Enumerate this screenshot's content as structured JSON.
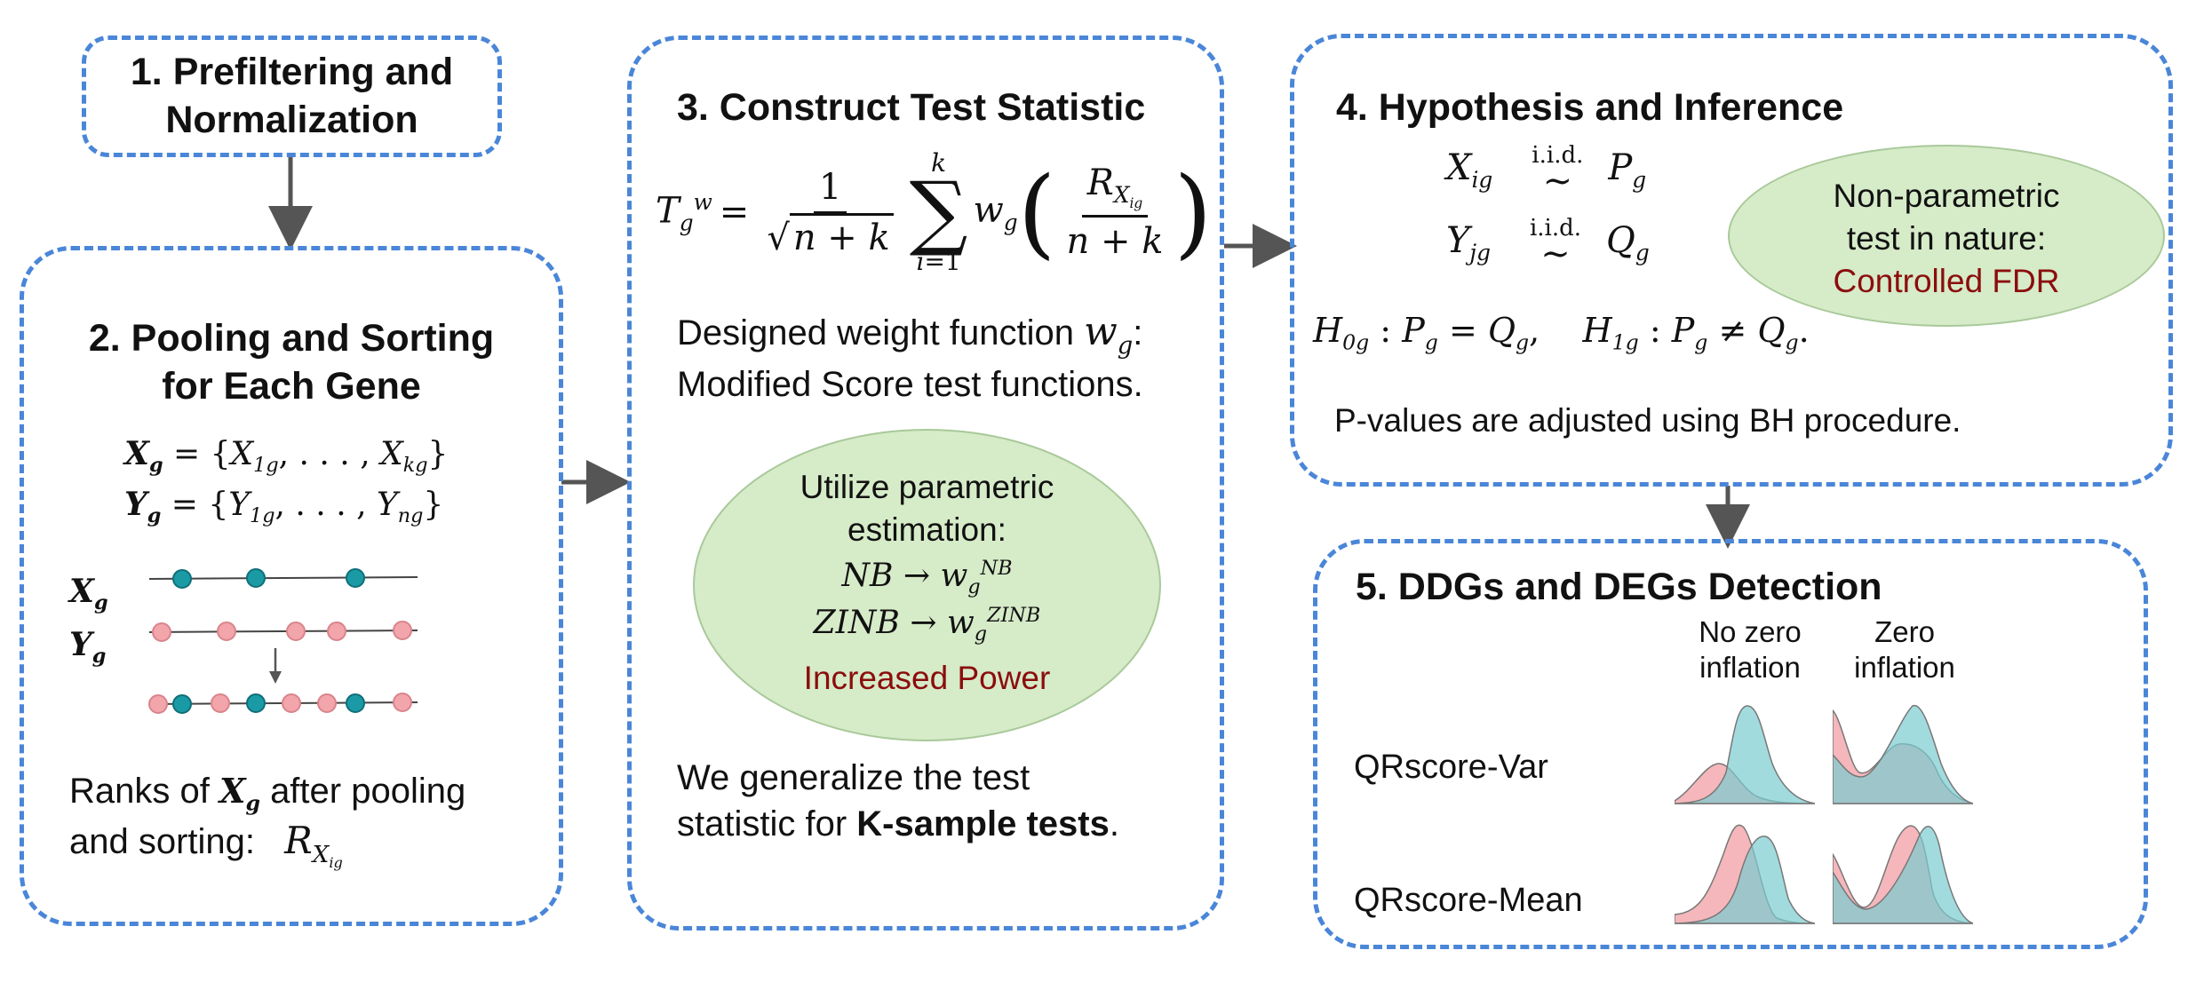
{
  "step1": {
    "title_line1": "1. Prefiltering and",
    "title_line2": "Normalization"
  },
  "step2": {
    "title_line1": "2. Pooling and Sorting",
    "title_line2": "for Each Gene",
    "label_x": "X",
    "label_y": "Y",
    "sub_g": "g",
    "ranks_text_1": "Ranks of",
    "ranks_text_2": "after pooling",
    "ranks_text_3": "and sorting:"
  },
  "step3": {
    "title": "3. Construct Test Statistic",
    "weight_text_1": "Designed weight function",
    "weight_text_2": "Modified Score test functions.",
    "ellipse_line1": "Utilize parametric",
    "ellipse_line2": "estimation:",
    "nb": "NB",
    "zinb": "ZINB",
    "power_text": "Increased Power",
    "generalize_1": "We generalize the test",
    "generalize_2": "statistic for",
    "generalize_bold": "K-sample tests",
    "generalize_end": "."
  },
  "step4": {
    "title": "4. Hypothesis and Inference",
    "iid": "i.i.d.",
    "ellipse_line1": "Non-parametric",
    "ellipse_line2": "test in nature:",
    "fdr_text": "Controlled FDR",
    "pvalue_text": "P-values are adjusted using BH procedure."
  },
  "step5": {
    "title": "5. DDGs and DEGs Detection",
    "col1_line1": "No zero",
    "col1_line2": "inflation",
    "col2_line1": "Zero",
    "col2_line2": "inflation",
    "row1": "QRscore-Var",
    "row2": "QRscore-Mean"
  },
  "colors": {
    "dashed_border": "#4a86d8",
    "ellipse_fill": "#d6ebc8",
    "highlight_red": "#8b0d0d",
    "teal_dot": "#1a9aa5",
    "pink_dot": "#f2a5aa",
    "arrow": "#555555"
  },
  "icons": [
    "arrow-down-icon",
    "arrow-right-icon",
    "density-curves-icon",
    "dot-line-icon"
  ]
}
